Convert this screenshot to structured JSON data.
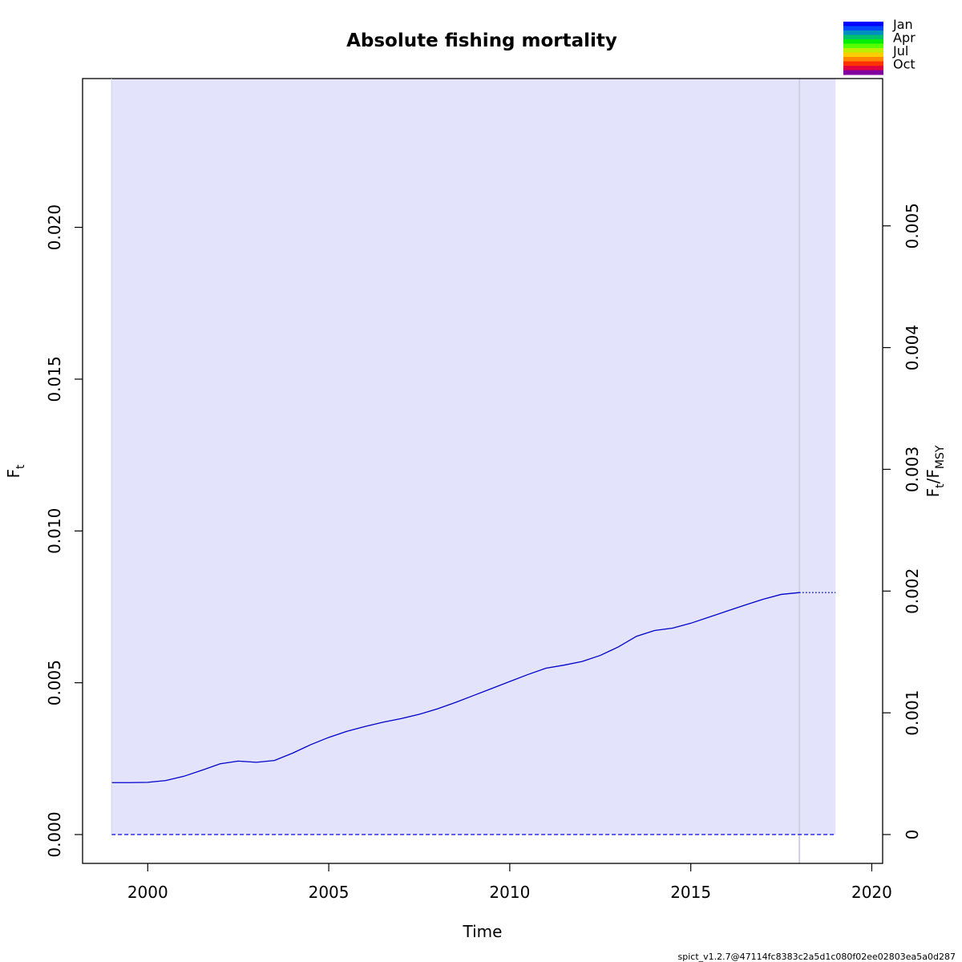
{
  "chart_data": {
    "type": "line",
    "title": "Absolute fishing mortality",
    "xlabel": "Time",
    "ylabel": {
      "main": "F",
      "sub": "t"
    },
    "ylabel_right": {
      "main1": "F",
      "sub1": "t",
      "sep": "/",
      "main2": "F",
      "sub2": "MSY"
    },
    "xlim": [
      1998.2,
      2020.3
    ],
    "ylim": [
      -0.00095,
      0.0249
    ],
    "ylim_right": [
      -0.000237,
      0.00621
    ],
    "x_ticks": [
      2000,
      2005,
      2010,
      2015,
      2020
    ],
    "x_tick_labels": [
      "2000",
      "2005",
      "2010",
      "2015",
      "2020"
    ],
    "y_ticks": [
      0.0,
      0.005,
      0.01,
      0.015,
      0.02
    ],
    "y_tick_labels": [
      "0.000",
      "0.005",
      "0.010",
      "0.015",
      "0.020"
    ],
    "y_right_ticks": [
      0,
      0.001,
      0.002,
      0.003,
      0.004,
      0.005
    ],
    "y_right_tick_labels": [
      "0",
      "0.001",
      "0.002",
      "0.003",
      "0.004",
      "0.005"
    ],
    "confidence_band": {
      "x_start": 1999.0,
      "x_end": 2019.0,
      "lower": 0.0,
      "upper": 0.0249,
      "color": "#e3e3fc"
    },
    "vertical_line": {
      "x": 2018.0,
      "color": "#cfcfe0"
    },
    "series": [
      {
        "style": "solid",
        "color": "#0000cc",
        "x": [
          1999.0,
          1999.5,
          2000.0,
          2000.5,
          2001.0,
          2001.5,
          2002.0,
          2002.5,
          2003.0,
          2003.5,
          2004.0,
          2004.5,
          2005.0,
          2005.5,
          2006.0,
          2006.5,
          2007.0,
          2007.5,
          2008.0,
          2008.5,
          2009.0,
          2009.5,
          2010.0,
          2010.5,
          2011.0,
          2011.5,
          2012.0,
          2012.5,
          2013.0,
          2013.5,
          2014.0,
          2014.5,
          2015.0,
          2015.5,
          2016.0,
          2016.5,
          2017.0,
          2017.5,
          2018.0
        ],
        "y": [
          0.00171,
          0.00171,
          0.00172,
          0.00178,
          0.00192,
          0.00212,
          0.00233,
          0.00242,
          0.00238,
          0.00244,
          0.00268,
          0.00296,
          0.0032,
          0.0034,
          0.00356,
          0.0037,
          0.00382,
          0.00396,
          0.00414,
          0.00435,
          0.00458,
          0.00481,
          0.00504,
          0.00527,
          0.00548,
          0.00558,
          0.0057,
          0.0059,
          0.00618,
          0.00653,
          0.00672,
          0.0068,
          0.00696,
          0.00716,
          0.00736,
          0.00756,
          0.00775,
          0.00791,
          0.00797
        ]
      },
      {
        "style": "dotted",
        "color": "#0000cc",
        "x": [
          2018.0,
          2019.0
        ],
        "y": [
          0.00797,
          0.00797
        ]
      },
      {
        "style": "dashed",
        "color": "#0000ff",
        "x": [
          1999.0,
          2019.0
        ],
        "y": [
          0.0,
          0.0
        ]
      }
    ],
    "legend": {
      "placement": "top-right",
      "labels": [
        "Jan",
        "Apr",
        "Jul",
        "Oct"
      ],
      "colors": [
        "#0000ff",
        "#0048ff",
        "#0090c0",
        "#00c070",
        "#00ee00",
        "#55ff00",
        "#bbee00",
        "#ffcc00",
        "#ff8800",
        "#ff3300",
        "#e00040",
        "#8000a0"
      ]
    }
  },
  "footer": "spict_v1.2.7@47114fc8383c2a5d1c080f02ee02803ea5a0d287"
}
